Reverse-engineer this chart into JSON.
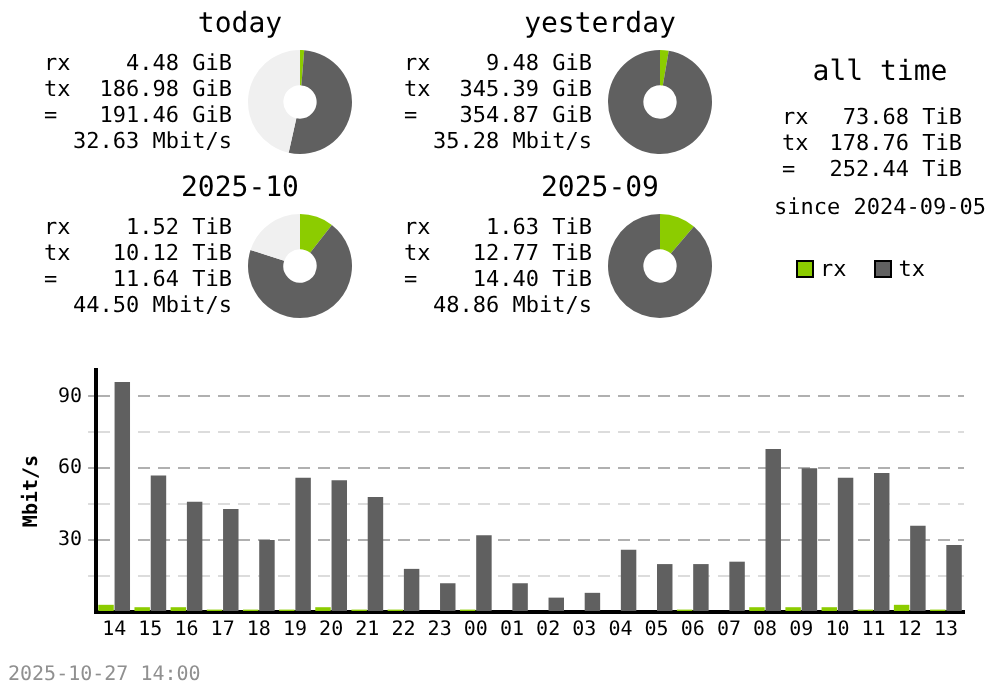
{
  "chart_data": [
    {
      "type": "donut",
      "title": "today",
      "categories": [
        null,
        null,
        null
      ],
      "values": [
        1.3,
        52.2,
        46.5
      ],
      "colors": [
        "#8ccc00",
        "#606060",
        "#f0f0f0"
      ],
      "annotations": [
        "rx 4.48 GiB",
        "tx 186.98 GiB",
        "= 191.46 GiB",
        "32.63 Mbit/s"
      ]
    },
    {
      "type": "donut",
      "title": "yesterday",
      "categories": [
        null,
        null
      ],
      "values": [
        2.7,
        97.3
      ],
      "colors": [
        "#8ccc00",
        "#606060"
      ],
      "annotations": [
        "rx 9.48 GiB",
        "tx 345.39 GiB",
        "= 354.87 GiB",
        "35.28 Mbit/s"
      ]
    },
    {
      "type": "other",
      "title": "all time",
      "annotations": [
        "rx 73.68 TiB",
        "tx 178.76 TiB",
        "= 252.44 TiB",
        "since 2024-09-05"
      ]
    },
    {
      "type": "donut",
      "title": "2025-10",
      "categories": [
        null,
        null,
        null
      ],
      "values": [
        10.5,
        69.5,
        20
      ],
      "colors": [
        "#8ccc00",
        "#606060",
        "#f0f0f0"
      ],
      "annotations": [
        "rx 1.52 TiB",
        "tx 10.12 TiB",
        "= 11.64 TiB",
        "44.50 Mbit/s"
      ]
    },
    {
      "type": "donut",
      "title": "2025-09",
      "categories": [
        null,
        null
      ],
      "values": [
        11.3,
        88.7
      ],
      "colors": [
        "#8ccc00",
        "#606060"
      ],
      "annotations": [
        "rx 1.63 TiB",
        "tx 12.77 TiB",
        "= 14.40 TiB",
        "48.86 Mbit/s"
      ]
    },
    {
      "type": "bar",
      "ylabel": "Mbit/s",
      "categories": [
        "14",
        "15",
        "16",
        "17",
        "18",
        "19",
        "20",
        "21",
        "22",
        "23",
        "00",
        "01",
        "02",
        "03",
        "04",
        "05",
        "06",
        "07",
        "08",
        "09",
        "10",
        "11",
        "12",
        "13"
      ],
      "series": [
        {
          "name": "rx",
          "color": "#8ccc00",
          "values": [
            3,
            2,
            2,
            1,
            1,
            1,
            2,
            1,
            1,
            0,
            1,
            0,
            0,
            0,
            0,
            0,
            1,
            0,
            2,
            2,
            2,
            1,
            3,
            1
          ]
        },
        {
          "name": "tx",
          "color": "#606060",
          "values": [
            96,
            57,
            46,
            43,
            30,
            56,
            55,
            48,
            18,
            12,
            32,
            12,
            6,
            8,
            26,
            20,
            20,
            21,
            68,
            60,
            56,
            58,
            36,
            28
          ]
        }
      ],
      "ylim": [
        0,
        101
      ],
      "yticks": [
        {
          "value": 0,
          "label": null
        },
        {
          "value": 15,
          "label": null
        },
        30,
        {
          "value": 45,
          "label": null
        },
        60,
        {
          "value": 75,
          "label": null
        },
        90
      ],
      "grid": "y",
      "legend": "top right",
      "annotations": [
        "2025-10-27 14:00"
      ]
    }
  ]
}
